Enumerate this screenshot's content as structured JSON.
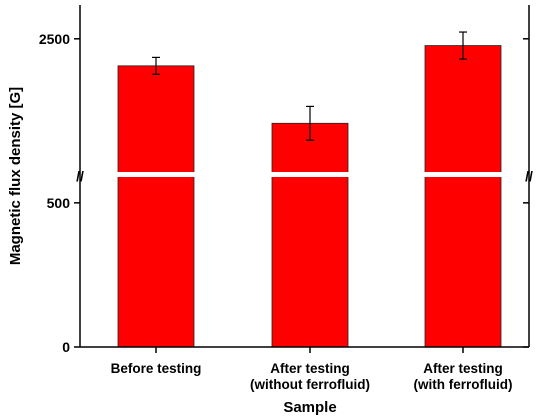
{
  "chart_data": {
    "type": "bar",
    "title": "",
    "xlabel": "Sample",
    "ylabel": "Magnetic flux density [G]",
    "categories": [
      [
        "Before testing"
      ],
      [
        "After testing",
        "(without ferrofluid)"
      ],
      [
        "After testing",
        "(with ferrofluid)"
      ]
    ],
    "values": [
      2420,
      2250,
      2480
    ],
    "errors": [
      25,
      50,
      40
    ],
    "yticks": [
      "0",
      "500",
      "2500"
    ],
    "axis_break": {
      "lower_range": [
        0,
        600
      ],
      "upper_range": [
        2100,
        2600
      ]
    },
    "grid": false,
    "legend": "none",
    "bar_color": "#ff0000",
    "break_color": "#ffffff"
  }
}
